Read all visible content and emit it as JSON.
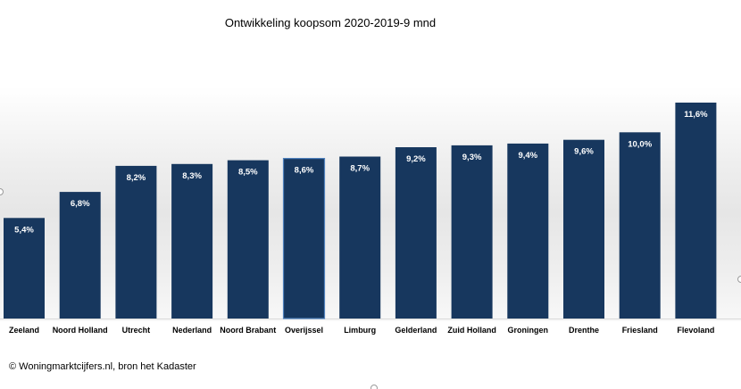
{
  "chart_data": {
    "type": "bar",
    "title": "Ontwikkeling koopsom 2020-2019-9 mnd",
    "xlabel": "",
    "ylabel": "",
    "ylim": [
      0,
      12.7
    ],
    "categories": [
      "Zeeland",
      "Noord Holland",
      "Utrecht",
      "Nederland",
      "Noord Brabant",
      "Overijssel",
      "Limburg",
      "Gelderland",
      "Zuid Holland",
      "Groningen",
      "Drenthe",
      "Friesland",
      "Flevoland"
    ],
    "values": [
      5.4,
      6.8,
      8.2,
      8.3,
      8.5,
      8.6,
      8.7,
      9.2,
      9.3,
      9.4,
      9.6,
      10.0,
      11.6
    ],
    "labels": [
      "5,4%",
      "6,8%",
      "8,2%",
      "8,3%",
      "8,5%",
      "8,6%",
      "8,7%",
      "9,2%",
      "9,3%",
      "9,4%",
      "9,6%",
      "10,0%",
      "11,6%"
    ],
    "highlight": "Overijssel",
    "grid": false,
    "legend": "none",
    "colors": {
      "bar": "#17375e",
      "highlight_border": "#4f81bd",
      "label": "#ffffff"
    }
  },
  "source": "© Woningmarktcijfers.nl, bron het Kadaster"
}
